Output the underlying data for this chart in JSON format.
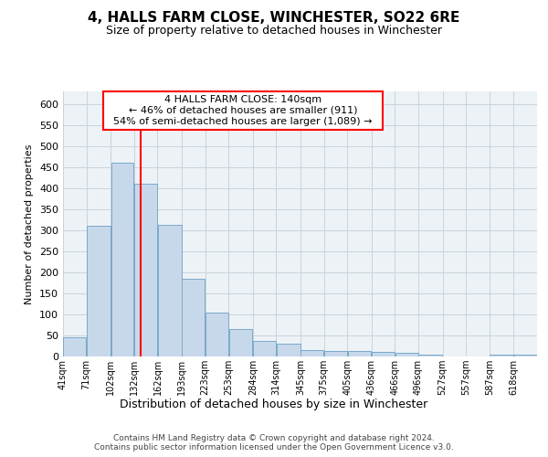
{
  "title": "4, HALLS FARM CLOSE, WINCHESTER, SO22 6RE",
  "subtitle": "Size of property relative to detached houses in Winchester",
  "xlabel": "Distribution of detached houses by size in Winchester",
  "ylabel": "Number of detached properties",
  "footer_line1": "Contains HM Land Registry data © Crown copyright and database right 2024.",
  "footer_line2": "Contains public sector information licensed under the Open Government Licence v3.0.",
  "annotation_line1": "4 HALLS FARM CLOSE: 140sqm",
  "annotation_line2": "← 46% of detached houses are smaller (911)",
  "annotation_line3": "54% of semi-detached houses are larger (1,089) →",
  "bar_edges": [
    41,
    71,
    102,
    132,
    162,
    193,
    223,
    253,
    284,
    314,
    345,
    375,
    405,
    436,
    466,
    496,
    527,
    557,
    587,
    618,
    648
  ],
  "bar_heights": [
    46,
    311,
    460,
    411,
    313,
    185,
    104,
    65,
    38,
    31,
    15,
    12,
    12,
    10,
    9,
    5,
    1,
    0,
    5,
    5
  ],
  "bar_color": "#c8d8eb",
  "bar_edge_color": "#7aaac8",
  "red_line_x": 140,
  "ylim": [
    0,
    630
  ],
  "xlim_min": 41,
  "xlim_max": 648,
  "yticks": [
    0,
    50,
    100,
    150,
    200,
    250,
    300,
    350,
    400,
    450,
    500,
    550,
    600
  ],
  "grid_color": "#c8d4dc",
  "bg_color": "#edf2f7"
}
